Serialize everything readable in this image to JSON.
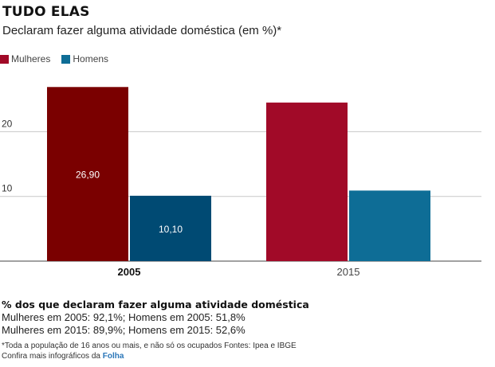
{
  "header": {
    "title": "TUDO ELAS",
    "subtitle": "Declaram fazer alguma atividade doméstica (em %)*"
  },
  "colors": {
    "mulheres": "#a10a28",
    "mulheres_highlight": "#7a0000",
    "homens": "#0e6d96",
    "homens_highlight": "#004a73"
  },
  "chart_data": {
    "type": "bar",
    "categories": [
      "2005",
      "2015"
    ],
    "series": [
      {
        "name": "Mulheres",
        "values": [
          26.9,
          24.5
        ]
      },
      {
        "name": "Homens",
        "values": [
          10.1,
          10.9
        ]
      }
    ],
    "data_labels": {
      "2005": [
        "26,90",
        "10,10"
      ]
    },
    "highlighted_category": "2005",
    "y_ticks": [
      10,
      20
    ],
    "y_tick_labels": [
      "10",
      "20"
    ],
    "ylim": [
      0,
      30
    ],
    "grid": true,
    "legend_position": "top-left"
  },
  "notes": {
    "title": "% dos que declaram fazer alguma atividade doméstica",
    "lines": [
      "Mulheres em 2005: 92,1%; Homens em 2005: 51,8%",
      "Mulheres em 2015: 89,9%; Homens em 2015: 52,6%"
    ],
    "footnote": "*Toda a população de 16 anos ou mais, e não só os ocupados Fontes: Ipea e IBGE",
    "more_prefix": "Confira mais infográficos da ",
    "more_brand": "Folha"
  }
}
